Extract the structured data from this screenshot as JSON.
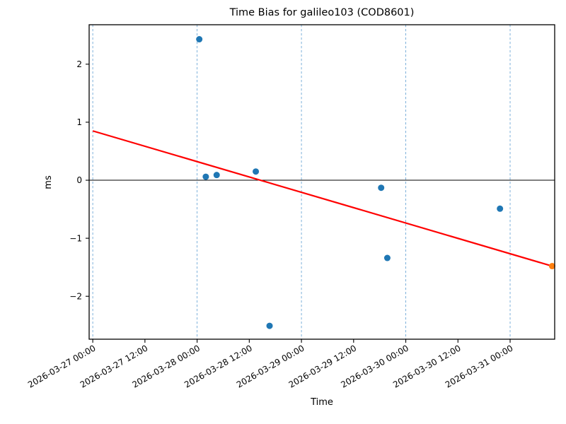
{
  "figure": {
    "background": "#ffffff"
  },
  "chart_data": {
    "type": "scatter",
    "title": "Time Bias for galileo103 (COD8601)",
    "xlabel": "Time",
    "ylabel": "ms",
    "xlim": [
      "2026-03-26 23:10",
      "2026-03-31 10:15"
    ],
    "ylim": [
      -2.74,
      2.68
    ],
    "x_ticks": [
      {
        "t": "2026-03-27 00:00",
        "label": "2026-03-27 00:00",
        "grid": true
      },
      {
        "t": "2026-03-27 12:00",
        "label": "2026-03-27 12:00",
        "grid": false
      },
      {
        "t": "2026-03-28 00:00",
        "label": "2026-03-28 00:00",
        "grid": true
      },
      {
        "t": "2026-03-28 12:00",
        "label": "2026-03-28 12:00",
        "grid": false
      },
      {
        "t": "2026-03-29 00:00",
        "label": "2026-03-29 00:00",
        "grid": true
      },
      {
        "t": "2026-03-29 12:00",
        "label": "2026-03-29 12:00",
        "grid": false
      },
      {
        "t": "2026-03-30 00:00",
        "label": "2026-03-30 00:00",
        "grid": true
      },
      {
        "t": "2026-03-30 12:00",
        "label": "2026-03-30 12:00",
        "grid": false
      },
      {
        "t": "2026-03-31 00:00",
        "label": "2026-03-31 00:00",
        "grid": true
      }
    ],
    "y_ticks": [
      {
        "v": -2,
        "label": "−2"
      },
      {
        "v": -1,
        "label": "−1"
      },
      {
        "v": 0,
        "label": "0"
      },
      {
        "v": 1,
        "label": "1"
      },
      {
        "v": 2,
        "label": "2"
      }
    ],
    "zero_line": 0,
    "series": [
      {
        "name": "time-bias-points",
        "color": "#1f77b4",
        "marker": "circle",
        "points": [
          {
            "t": "2026-03-28 00:30",
            "ms": 2.43
          },
          {
            "t": "2026-03-28 02:00",
            "ms": 0.06
          },
          {
            "t": "2026-03-28 04:30",
            "ms": 0.09
          },
          {
            "t": "2026-03-28 13:30",
            "ms": 0.15
          },
          {
            "t": "2026-03-28 16:40",
            "ms": -2.51
          },
          {
            "t": "2026-03-29 18:20",
            "ms": -0.13
          },
          {
            "t": "2026-03-29 19:45",
            "ms": -1.34
          },
          {
            "t": "2026-03-30 21:40",
            "ms": -0.49
          }
        ]
      },
      {
        "name": "latest-point",
        "color": "#ff7f0e",
        "marker": "circle",
        "points": [
          {
            "t": "2026-03-31 09:40",
            "ms": -1.48
          }
        ]
      }
    ],
    "trend_line": {
      "color": "#ff0000",
      "from": {
        "t": "2026-03-27 00:00",
        "ms": 0.85
      },
      "to": {
        "t": "2026-03-31 09:40",
        "ms": -1.48
      }
    },
    "style": {
      "grid_color": "#6fa8d6",
      "axis_color": "#000000",
      "zero_line_color": "#000000",
      "x_tick_rotation_deg": 30
    }
  }
}
